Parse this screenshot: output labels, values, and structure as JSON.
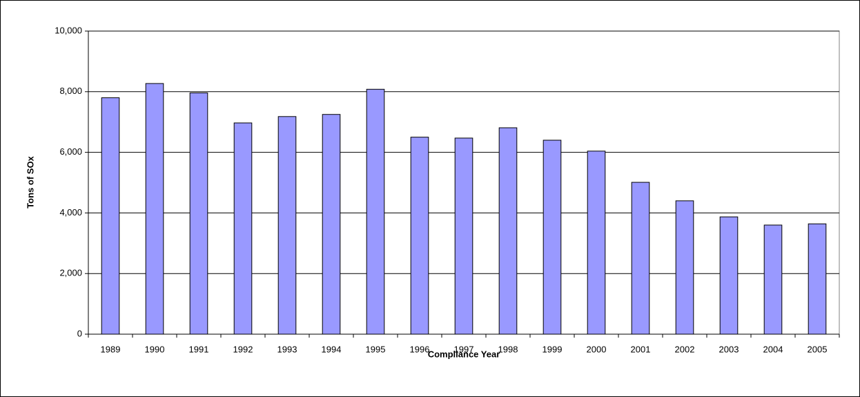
{
  "chart_data": {
    "type": "bar",
    "xlabel": "Compliance Year",
    "ylabel": "Tons of SOx",
    "categories": [
      "1989",
      "1990",
      "1991",
      "1992",
      "1993",
      "1994",
      "1995",
      "1996",
      "1997",
      "1998",
      "1999",
      "2000",
      "2001",
      "2002",
      "2003",
      "2004",
      "2005"
    ],
    "values": [
      7800,
      8270,
      7960,
      6970,
      7180,
      7250,
      8080,
      6500,
      6470,
      6810,
      6400,
      6040,
      5010,
      4400,
      3870,
      3600,
      3640
    ],
    "color": "#9999ff",
    "ylim": [
      0,
      10000
    ],
    "yticks": [
      0,
      {
        "value": 2000,
        "label": "2,000"
      },
      {
        "value": 4000,
        "label": "4,000"
      },
      {
        "value": 6000,
        "label": "6,000"
      },
      {
        "value": 8000,
        "label": "8,000"
      },
      {
        "value": 10000,
        "label": "10,000"
      }
    ],
    "grid": true
  }
}
